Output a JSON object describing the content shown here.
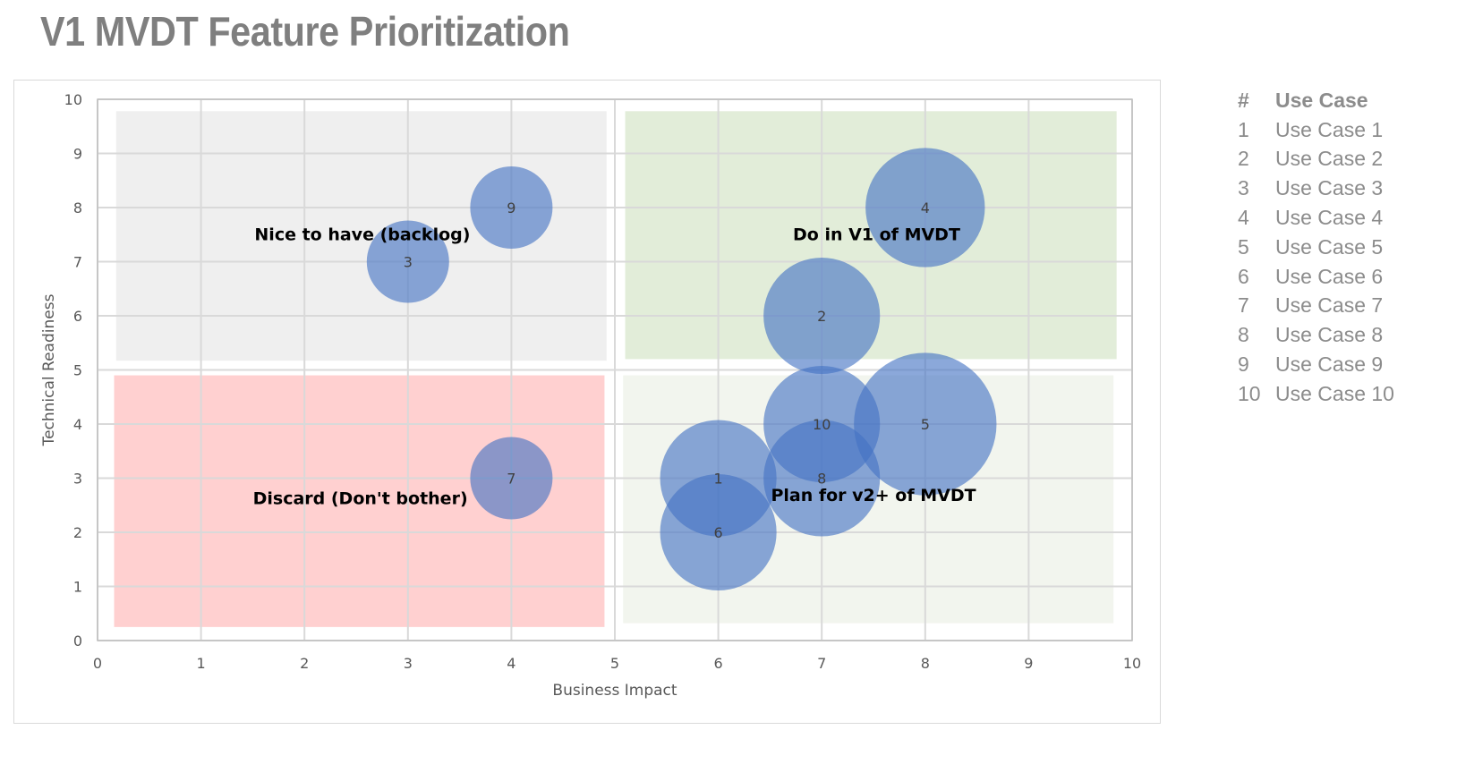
{
  "title": "V1 MVDT Feature Prioritization",
  "chart_data": {
    "type": "bubble",
    "xlabel": "Business Impact",
    "ylabel": "Technical Readiness",
    "xlim": [
      0,
      10
    ],
    "ylim": [
      0,
      10
    ],
    "xticks": [
      "0",
      "1",
      "2",
      "3",
      "4",
      "5",
      "6",
      "7",
      "8",
      "9",
      "10"
    ],
    "yticks": [
      "0",
      "1",
      "2",
      "3",
      "4",
      "5",
      "6",
      "7",
      "8",
      "9",
      "10"
    ],
    "grid": true,
    "bubble_color": "#4472C4",
    "points": [
      {
        "label": "1",
        "x": 6,
        "y": 3,
        "size": 2
      },
      {
        "label": "2",
        "x": 7,
        "y": 6,
        "size": 2
      },
      {
        "label": "3",
        "x": 3,
        "y": 7,
        "size": 1
      },
      {
        "label": "4",
        "x": 8,
        "y": 8,
        "size": 2.1
      },
      {
        "label": "5",
        "x": 8,
        "y": 4,
        "size": 3
      },
      {
        "label": "6",
        "x": 6,
        "y": 2,
        "size": 2
      },
      {
        "label": "7",
        "x": 4,
        "y": 3,
        "size": 1
      },
      {
        "label": "8",
        "x": 7,
        "y": 3,
        "size": 2
      },
      {
        "label": "9",
        "x": 4,
        "y": 8,
        "size": 1
      },
      {
        "label": "10",
        "x": 7,
        "y": 4,
        "size": 2
      }
    ],
    "regions": [
      {
        "label": "Nice to have (backlog)",
        "color": "#efefef"
      },
      {
        "label": "Do in V1 of MVDT",
        "color": "#e2edd9"
      },
      {
        "label": "Discard (Don't bother)",
        "color": "#ffd0d0"
      },
      {
        "label": "Plan for v2+ of MVDT",
        "color": "#f2f5ee"
      }
    ]
  },
  "legend": {
    "header_num": "#",
    "header_name": "Use Case",
    "items": [
      {
        "num": "1",
        "name": "Use Case 1"
      },
      {
        "num": "2",
        "name": "Use Case 2"
      },
      {
        "num": "3",
        "name": "Use Case 3"
      },
      {
        "num": "4",
        "name": "Use Case 4"
      },
      {
        "num": "5",
        "name": "Use Case 5"
      },
      {
        "num": "6",
        "name": "Use Case 6"
      },
      {
        "num": "7",
        "name": "Use Case 7"
      },
      {
        "num": "8",
        "name": "Use Case 8"
      },
      {
        "num": "9",
        "name": "Use Case 9"
      },
      {
        "num": "10",
        "name": "Use Case 10"
      }
    ]
  }
}
